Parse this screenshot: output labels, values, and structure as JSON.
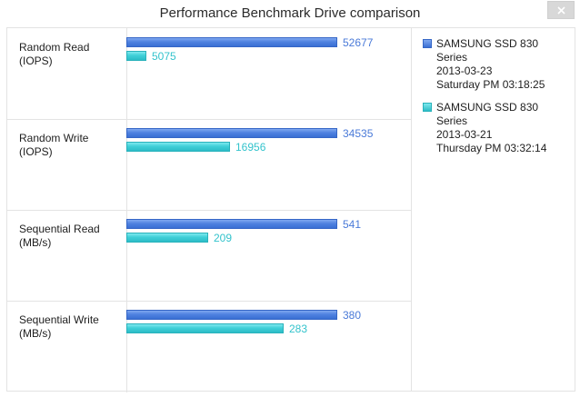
{
  "window": {
    "title": "Performance Benchmark Drive comparison"
  },
  "colors": {
    "series1": "#3f74d9",
    "series2": "#3cccd5"
  },
  "legend": [
    {
      "lines": [
        "SAMSUNG SSD 830",
        "Series",
        "2013-03-23",
        "Saturday PM 03:18:25"
      ]
    },
    {
      "lines": [
        "SAMSUNG SSD 830",
        "Series",
        "2013-03-21",
        "Thursday PM 03:32:14"
      ]
    }
  ],
  "rows": [
    {
      "label": [
        "Random Read",
        "(IOPS)"
      ],
      "values": [
        52677,
        5075
      ],
      "display": [
        "52677",
        "5075"
      ]
    },
    {
      "label": [
        "Random Write",
        "(IOPS)"
      ],
      "values": [
        34535,
        16956
      ],
      "display": [
        "34535",
        "16956"
      ]
    },
    {
      "label": [
        "Sequential Read",
        "(MB/s)"
      ],
      "values": [
        541,
        209
      ],
      "display": [
        "541",
        "209"
      ]
    },
    {
      "label": [
        "Sequential Write",
        "(MB/s)"
      ],
      "values": [
        380,
        283
      ],
      "display": [
        "380",
        "283"
      ]
    }
  ],
  "chart_data": {
    "type": "bar",
    "title": "Performance Benchmark Drive comparison",
    "categories": [
      "Random Read (IOPS)",
      "Random Write (IOPS)",
      "Sequential Read (MB/s)",
      "Sequential Write (MB/s)"
    ],
    "series": [
      {
        "name": "SAMSUNG SSD 830 Series 2013-03-23 Saturday PM 03:18:25",
        "values": [
          52677,
          34535,
          541,
          380
        ]
      },
      {
        "name": "SAMSUNG SSD 830 Series 2013-03-21 Thursday PM 03:32:14",
        "values": [
          5075,
          16956,
          209,
          283
        ]
      }
    ],
    "orientation": "horizontal",
    "grid": true,
    "legend_position": "right"
  }
}
